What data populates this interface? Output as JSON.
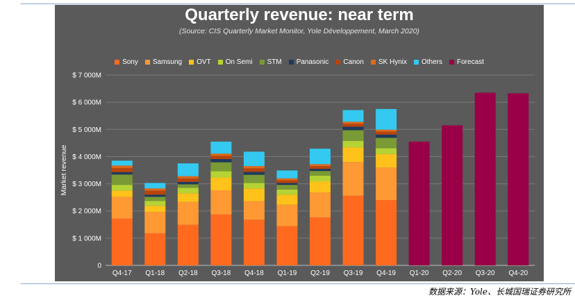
{
  "chart_data": {
    "type": "bar",
    "stacked": true,
    "title": "Quarterly revenue: near term",
    "subtitle": "(Source: CIS Quarterly Market Monitor, Yole Développement, March 2020)",
    "ylabel": "Market revenue",
    "xlabel": "",
    "ylim": [
      0,
      7000
    ],
    "yticks": [
      {
        "value": 0,
        "label": "0"
      },
      {
        "value": 1000,
        "label": "$ 1 000M"
      },
      {
        "value": 2000,
        "label": "$ 2 000M"
      },
      {
        "value": 3000,
        "label": "$ 3 000M"
      },
      {
        "value": 4000,
        "label": "$ 4 000M"
      },
      {
        "value": 5000,
        "label": "$ 5 000M"
      },
      {
        "value": 6000,
        "label": "$ 6 000M"
      },
      {
        "value": 7000,
        "label": "$ 7 000M"
      }
    ],
    "grid": true,
    "legend_position": "top",
    "categories": [
      "Q4-17",
      "Q1-18",
      "Q2-18",
      "Q3-18",
      "Q4-18",
      "Q1-19",
      "Q2-19",
      "Q3-19",
      "Q4-19",
      "Q1-20",
      "Q2-20",
      "Q3-20",
      "Q4-20"
    ],
    "series": [
      {
        "name": "Sony",
        "color": "#ff6a1f",
        "values": [
          1720,
          1180,
          1490,
          1870,
          1680,
          1440,
          1760,
          2560,
          2400,
          0,
          0,
          0,
          0
        ]
      },
      {
        "name": "Samsung",
        "color": "#ff9933",
        "values": [
          800,
          780,
          840,
          890,
          680,
          790,
          920,
          1240,
          1200,
          0,
          0,
          0,
          0
        ]
      },
      {
        "name": "OVT",
        "color": "#ffc21a",
        "values": [
          230,
          230,
          320,
          470,
          470,
          370,
          410,
          540,
          490,
          0,
          0,
          0,
          0
        ]
      },
      {
        "name": "On Semi",
        "color": "#b5d334",
        "values": [
          210,
          180,
          200,
          230,
          200,
          190,
          210,
          240,
          220,
          0,
          0,
          0,
          0
        ]
      },
      {
        "name": "STM",
        "color": "#7a9a35",
        "values": [
          380,
          150,
          130,
          330,
          300,
          170,
          170,
          390,
          380,
          0,
          0,
          0,
          0
        ]
      },
      {
        "name": "Panasonic",
        "color": "#1f3a5c",
        "values": [
          90,
          80,
          90,
          120,
          110,
          70,
          80,
          130,
          120,
          0,
          0,
          0,
          0
        ]
      },
      {
        "name": "Canon",
        "color": "#b8450c",
        "values": [
          150,
          150,
          130,
          120,
          130,
          100,
          100,
          110,
          110,
          0,
          0,
          0,
          0
        ]
      },
      {
        "name": "SK Hynix",
        "color": "#e06a1a",
        "values": [
          90,
          80,
          80,
          80,
          80,
          70,
          70,
          70,
          70,
          0,
          0,
          0,
          0
        ]
      },
      {
        "name": "Others",
        "color": "#33c9f0",
        "values": [
          180,
          200,
          470,
          440,
          530,
          290,
          570,
          430,
          760,
          0,
          0,
          0,
          0
        ]
      },
      {
        "name": "Forecast",
        "color": "#990047",
        "values": [
          0,
          0,
          0,
          0,
          0,
          0,
          0,
          0,
          0,
          4550,
          5150,
          6350,
          6330
        ]
      }
    ]
  },
  "caption": "数据来源：Yole、长城国瑞证券研究所"
}
